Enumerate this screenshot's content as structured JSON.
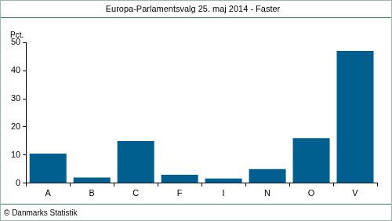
{
  "chart_data": {
    "type": "bar",
    "title": "Europa-Parlamentsvalg 25. maj 2014 - Faster",
    "ylabel": "Pct.",
    "annotations": [
      "© Danmarks Statistik"
    ],
    "categories": [
      "A",
      "B",
      "C",
      "F",
      "I",
      "N",
      "O",
      "V"
    ],
    "values": [
      10.5,
      2,
      15,
      3,
      1.7,
      5,
      16,
      47
    ],
    "color": "#005f8f",
    "ylim": [
      0,
      50
    ],
    "yticks": [
      0,
      10,
      20,
      30,
      40,
      50
    ],
    "grid": false
  }
}
